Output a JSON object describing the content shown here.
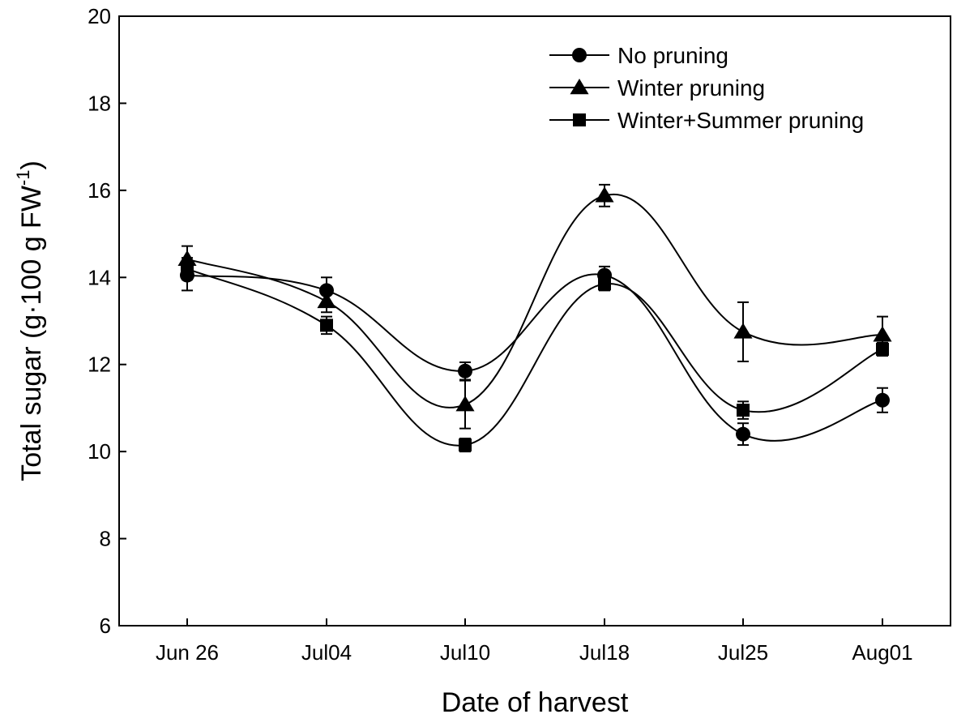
{
  "chart_data": {
    "type": "line",
    "xlabel": "Date of harvest",
    "ylabel": {
      "main": "Total sugar (g·100 g FW",
      "sup": "-1",
      "end": ")"
    },
    "ylim": [
      6,
      20
    ],
    "yticks": [
      6,
      8,
      10,
      12,
      14,
      16,
      18,
      20
    ],
    "categories": [
      "Jun 26",
      "Jul04",
      "Jul10",
      "Jul18",
      "Jul25",
      "Aug01"
    ],
    "grid": false,
    "legend_position": "top-right",
    "series": [
      {
        "name": "No pruning",
        "marker": "circle",
        "values": [
          14.05,
          13.7,
          11.85,
          14.05,
          10.4,
          11.18
        ],
        "errors": [
          0.35,
          0.3,
          0.2,
          0.2,
          0.25,
          0.28
        ]
      },
      {
        "name": "Winter pruning",
        "marker": "triangle",
        "values": [
          14.42,
          13.45,
          11.08,
          15.88,
          12.75,
          12.68
        ],
        "errors": [
          0.3,
          0.25,
          0.55,
          0.25,
          0.68,
          0.42
        ]
      },
      {
        "name": "Winter+Summer pruning",
        "marker": "square",
        "values": [
          14.2,
          12.9,
          10.15,
          13.85,
          10.95,
          12.35
        ],
        "errors": [
          0.25,
          0.2,
          0.15,
          0.15,
          0.2,
          0.15
        ]
      }
    ]
  }
}
